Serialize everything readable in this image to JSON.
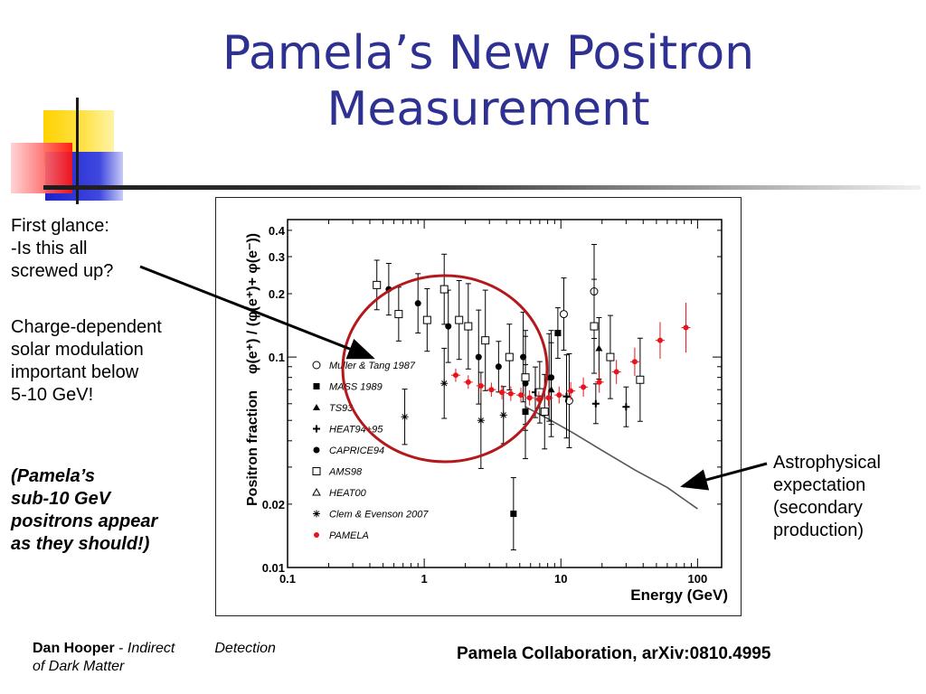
{
  "slide": {
    "title_line1": "Pamela’s New Positron",
    "title_line2": "Measurement",
    "left_text": {
      "glance_line1": "First glance:",
      "glance_line2": "-Is this all",
      "glance_line3": "screwed up?",
      "charge_line1": "Charge-dependent",
      "charge_line2": "solar modulation",
      "charge_line3": "important below",
      "charge_line4": "5-10 GeV!",
      "pamela_line1": "(Pamela’s",
      "pamela_line2": "sub-10 GeV",
      "pamela_line3": "positrons appear",
      "pamela_line4": "as they should!)"
    },
    "right_text": {
      "line1": "Astrophysical",
      "line2": "expectation",
      "line3": "(secondary",
      "line4": "production)"
    },
    "footer": {
      "author": "Dan Hooper",
      "dash": " - ",
      "talk_part1": "Indirect",
      "talk_part2": "Detection",
      "talk_line2": "of Dark Matter",
      "citation": "Pamela Collaboration, arXiv:0810.4995"
    },
    "colors": {
      "title": "#2e3192",
      "pamela": "#e8141b",
      "circle": "#b3181c"
    }
  },
  "chart_data": {
    "type": "scatter",
    "xlabel": "Energy (GeV)",
    "ylabel_main": "Positron fraction",
    "ylabel_formula": "φ(e⁺) / (φ(e⁺)+ φ(e⁻))",
    "xscale": "log",
    "yscale": "log",
    "xlim": [
      0.1,
      150
    ],
    "ylim": [
      0.01,
      0.45
    ],
    "x_ticks": [
      "0.1",
      "1",
      "10",
      "100"
    ],
    "y_ticks": [
      "0.01",
      "0.02",
      "0.1",
      "0.2",
      "0.3",
      "0.4"
    ],
    "legend_position": "left-center",
    "series": [
      {
        "name": "Muller & Tang 1987",
        "marker": "open-circle",
        "points": [
          [
            17.5,
            0.205
          ],
          [
            10.5,
            0.16
          ],
          [
            11.5,
            0.062
          ]
        ]
      },
      {
        "name": "MASS 1989",
        "marker": "filled-square",
        "points": [
          [
            4.5,
            0.018
          ],
          [
            9.5,
            0.13
          ],
          [
            5.5,
            0.055
          ]
        ]
      },
      {
        "name": "TS93",
        "marker": "filled-triangle",
        "points": [
          [
            8.5,
            0.07
          ],
          [
            19,
            0.11
          ],
          [
            8.2,
            0.08
          ]
        ]
      },
      {
        "name": "HEAT94+95",
        "marker": "cross",
        "points": [
          [
            6.5,
            0.068
          ],
          [
            11,
            0.065
          ],
          [
            18,
            0.06
          ],
          [
            30,
            0.058
          ]
        ]
      },
      {
        "name": "CAPRICE94",
        "marker": "filled-circle",
        "points": [
          [
            0.55,
            0.21
          ],
          [
            0.9,
            0.18
          ],
          [
            1.5,
            0.14
          ],
          [
            2.5,
            0.1
          ],
          [
            3.5,
            0.09
          ],
          [
            5.3,
            0.1
          ],
          [
            5.5,
            0.075
          ],
          [
            8.5,
            0.08
          ]
        ]
      },
      {
        "name": "AMS98",
        "marker": "open-square",
        "points": [
          [
            0.45,
            0.22
          ],
          [
            0.65,
            0.16
          ],
          [
            1.05,
            0.15
          ],
          [
            1.4,
            0.21
          ],
          [
            1.8,
            0.15
          ],
          [
            2.1,
            0.14
          ],
          [
            2.8,
            0.12
          ],
          [
            4.2,
            0.1
          ],
          [
            5.5,
            0.08
          ],
          [
            7,
            0.068
          ],
          [
            7.6,
            0.055
          ],
          [
            17.5,
            0.14
          ],
          [
            23,
            0.1
          ],
          [
            38,
            0.078
          ]
        ]
      },
      {
        "name": "HEAT00",
        "marker": "open-triangle",
        "points": []
      },
      {
        "name": "Clem & Evenson 2007",
        "marker": "asterisk",
        "points": [
          [
            0.72,
            0.052
          ],
          [
            1.4,
            0.075
          ],
          [
            2.6,
            0.05
          ],
          [
            3.8,
            0.053
          ]
        ]
      },
      {
        "name": "PAMELA",
        "marker": "filled-circle-red",
        "points": [
          [
            1.7,
            0.082
          ],
          [
            2.1,
            0.076
          ],
          [
            2.6,
            0.073
          ],
          [
            3.1,
            0.07
          ],
          [
            3.7,
            0.068
          ],
          [
            4.3,
            0.067
          ],
          [
            5.1,
            0.066
          ],
          [
            5.9,
            0.064
          ],
          [
            6.9,
            0.063
          ],
          [
            8.1,
            0.064
          ],
          [
            9.7,
            0.066
          ],
          [
            11.8,
            0.069
          ],
          [
            14.6,
            0.072
          ],
          [
            19.1,
            0.076
          ],
          [
            25.5,
            0.085
          ],
          [
            34.7,
            0.095
          ],
          [
            53.2,
            0.12
          ],
          [
            82.2,
            0.138
          ]
        ]
      }
    ],
    "secondary_curve": [
      [
        5.5,
        0.058
      ],
      [
        8,
        0.051
      ],
      [
        12,
        0.044
      ],
      [
        20,
        0.036
      ],
      [
        35,
        0.029
      ],
      [
        60,
        0.024
      ],
      [
        100,
        0.019
      ]
    ]
  }
}
